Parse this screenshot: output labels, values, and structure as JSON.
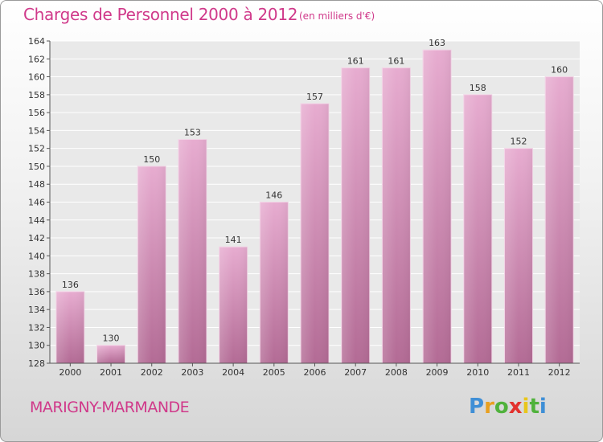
{
  "header": {
    "title": "Charges de Personnel 2000 à 2012",
    "unit": "(en milliers d'€)"
  },
  "footer": {
    "commune": "MARIGNY-MARMANDE",
    "logo_letters": [
      "P",
      "r",
      "o",
      "x",
      "i",
      "t",
      "i"
    ],
    "logo_colors": [
      "#3f8fd6",
      "#e8a020",
      "#50b23c",
      "#e2312d",
      "#e8c61c",
      "#50b23c",
      "#3f8fd6"
    ]
  },
  "colors": {
    "accent": "#d0398a",
    "bar_top": "#e7acd0",
    "bar_bottom": "#b36b95",
    "grid": "#ffffff"
  },
  "chart_data": {
    "type": "bar",
    "title": "Charges de Personnel 2000 à 2012",
    "subtitle": "(en milliers d'€)",
    "categories": [
      "2000",
      "2001",
      "2002",
      "2003",
      "2004",
      "2005",
      "2006",
      "2007",
      "2008",
      "2009",
      "2010",
      "2011",
      "2012"
    ],
    "values": [
      136,
      130,
      150,
      153,
      141,
      146,
      157,
      161,
      161,
      163,
      158,
      152,
      160
    ],
    "ylim": [
      128,
      164
    ],
    "yticks": [
      128,
      130,
      132,
      134,
      136,
      138,
      140,
      142,
      144,
      146,
      148,
      150,
      152,
      154,
      156,
      158,
      160,
      162,
      164
    ],
    "grid": true,
    "legend": "none"
  }
}
